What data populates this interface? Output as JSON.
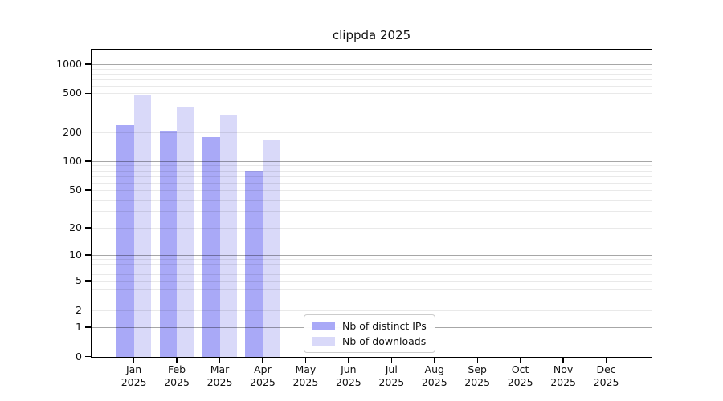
{
  "chart_data": {
    "type": "bar",
    "title": "clippda 2025",
    "categories": [
      "Jan",
      "Feb",
      "Mar",
      "Apr",
      "May",
      "Jun",
      "Jul",
      "Aug",
      "Sep",
      "Oct",
      "Nov",
      "Dec"
    ],
    "category_year_label": "2025",
    "series": [
      {
        "key": "distinct-ips",
        "name": "Nb of distinct IPs",
        "color": "#a9a9f7",
        "values": [
          235,
          207,
          177,
          80,
          null,
          null,
          null,
          null,
          null,
          null,
          null,
          null
        ]
      },
      {
        "key": "downloads",
        "name": "Nb of downloads",
        "color": "#d9d9f9",
        "values": [
          480,
          357,
          300,
          163,
          null,
          null,
          null,
          null,
          null,
          null,
          null,
          null
        ]
      }
    ],
    "xlabel": "",
    "ylabel": "",
    "yscale": "log10(value+1)",
    "ylim": [
      0,
      1400
    ],
    "ytick_values": [
      0,
      1,
      2,
      5,
      10,
      20,
      50,
      100,
      200,
      500,
      1000
    ],
    "ytick_labels": [
      "0",
      "1",
      "2",
      "5",
      "10",
      "20",
      "50",
      "100",
      "200",
      "500",
      "1000"
    ],
    "major_grid_values": [
      1,
      10,
      100,
      1000
    ],
    "minor_grid_values": [
      2,
      3,
      4,
      5,
      6,
      7,
      8,
      9,
      20,
      30,
      40,
      50,
      60,
      70,
      80,
      90,
      200,
      300,
      400,
      500,
      600,
      700,
      800,
      900
    ],
    "grid": "horizontal, drawn over bars",
    "legend_position": "bottom-center"
  }
}
